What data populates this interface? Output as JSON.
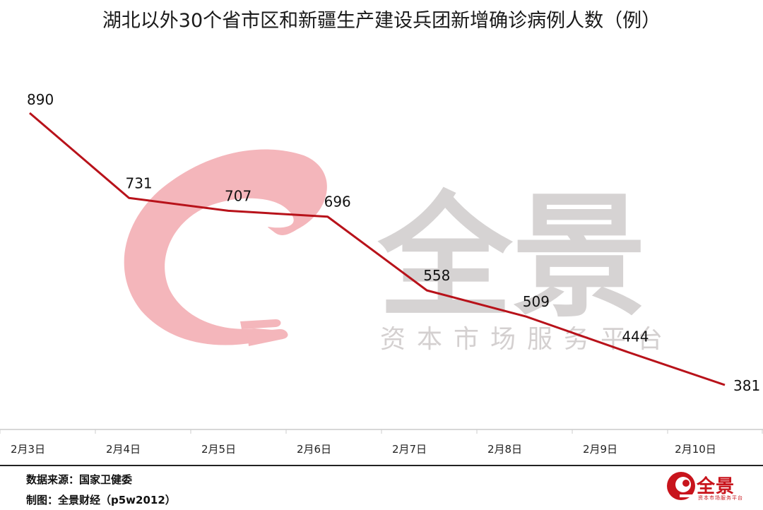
{
  "chart_data": {
    "type": "line",
    "title": "湖北以外30个省市区和新疆生产建设兵团新增确诊病例人数（例）",
    "categories": [
      "2月3日",
      "2月4日",
      "2月5日",
      "2月6日",
      "2月7日",
      "2月8日",
      "2月9日",
      "2月10日"
    ],
    "values": [
      890,
      731,
      707,
      696,
      558,
      509,
      444,
      381
    ],
    "xlabel": "",
    "ylabel": "",
    "ylim": [
      300,
      950
    ],
    "grid": false,
    "line_color": "#b8121a"
  },
  "watermark": {
    "name": "全景",
    "tagline": "资本市场服务平台",
    "color_red": "#f4b6bb",
    "color_gray": "#cfcbcb"
  },
  "footer": {
    "source": "数据来源：国家卫健委",
    "maker": "制图：全景财经（p5w2012）"
  },
  "brand": {
    "name": "全景",
    "sub": "资本市场服务平台",
    "color": "#c8141c"
  }
}
